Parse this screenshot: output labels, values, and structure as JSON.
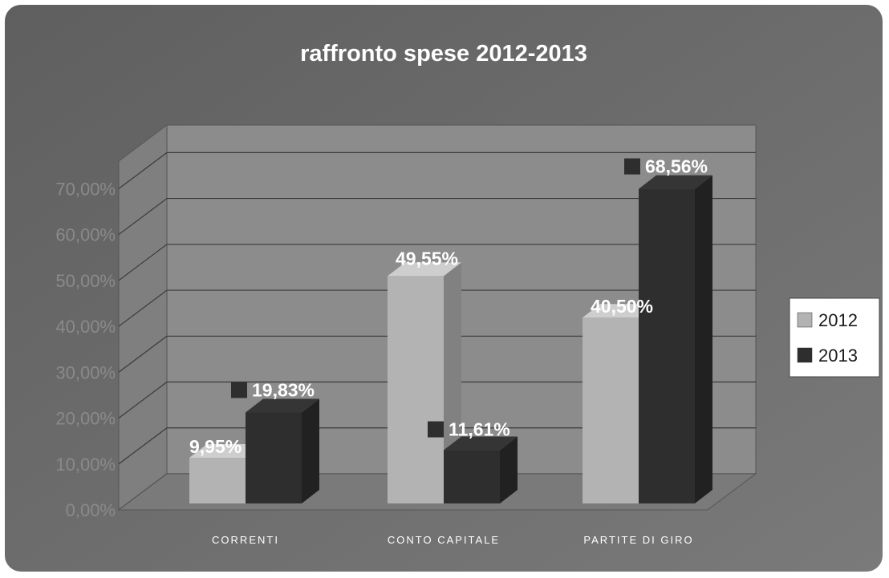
{
  "chart_data": {
    "type": "bar",
    "title": "raffronto spese 2012-2013",
    "categories": [
      "CORRENTI",
      "CONTO CAPITALE",
      "PARTITE DI GIRO"
    ],
    "series": [
      {
        "name": "2012",
        "values": [
          9.95,
          49.55,
          40.5
        ],
        "labels": [
          "9,95%",
          "49,55%",
          "40,50%"
        ],
        "color": "#b3b3b3"
      },
      {
        "name": "2013",
        "values": [
          19.83,
          11.61,
          68.56
        ],
        "labels": [
          "19,83%",
          "11,61%",
          "68,56%"
        ],
        "color": "#2e2e2e"
      }
    ],
    "y_ticks": [
      "0,00%",
      "10,00%",
      "20,00%",
      "30,00%",
      "40,00%",
      "50,00%",
      "60,00%",
      "70,00%"
    ],
    "ylim": [
      0,
      70
    ],
    "grid": true,
    "legend_position": "right",
    "style": "3d-column",
    "colors": {
      "background": "#6f6f6f",
      "plot_wall": "#8c8c8c",
      "floor": "#7a7a7a",
      "gridline": "#3a3a3a"
    }
  }
}
